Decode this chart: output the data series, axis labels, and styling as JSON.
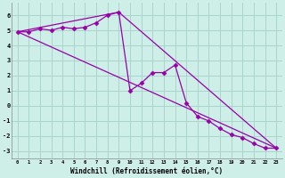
{
  "xlabel": "Windchill (Refroidissement éolien,°C)",
  "bg_color": "#ceeee8",
  "grid_color": "#aad4cc",
  "line_color": "#9900aa",
  "xlim": [
    -0.5,
    23.5
  ],
  "ylim": [
    -3.5,
    6.8
  ],
  "xtick_labels": [
    "0",
    "1",
    "2",
    "3",
    "4",
    "5",
    "6",
    "7",
    "8",
    "9",
    "10",
    "11",
    "12",
    "13",
    "14",
    "15",
    "16",
    "17",
    "18",
    "19",
    "20",
    "21",
    "22",
    "23"
  ],
  "ytick_values": [
    -3,
    -2,
    -1,
    0,
    1,
    2,
    3,
    4,
    5,
    6
  ],
  "series1_x": [
    0,
    1,
    2,
    3,
    4,
    5,
    6,
    7,
    8,
    9,
    10,
    11,
    12,
    13,
    14,
    15,
    16,
    17,
    18,
    19,
    20,
    21,
    22,
    23
  ],
  "series1_y": [
    4.9,
    4.9,
    5.1,
    5.0,
    5.2,
    5.1,
    5.2,
    5.5,
    6.0,
    6.2,
    1.0,
    1.5,
    2.2,
    2.2,
    2.7,
    0.2,
    -0.7,
    -1.0,
    -1.5,
    -1.9,
    -2.1,
    -2.5,
    -2.8,
    -2.8
  ],
  "series2_x": [
    0,
    23
  ],
  "series2_y": [
    4.9,
    -2.8
  ],
  "series3_x": [
    0,
    9,
    23
  ],
  "series3_y": [
    4.9,
    6.2,
    -2.8
  ]
}
